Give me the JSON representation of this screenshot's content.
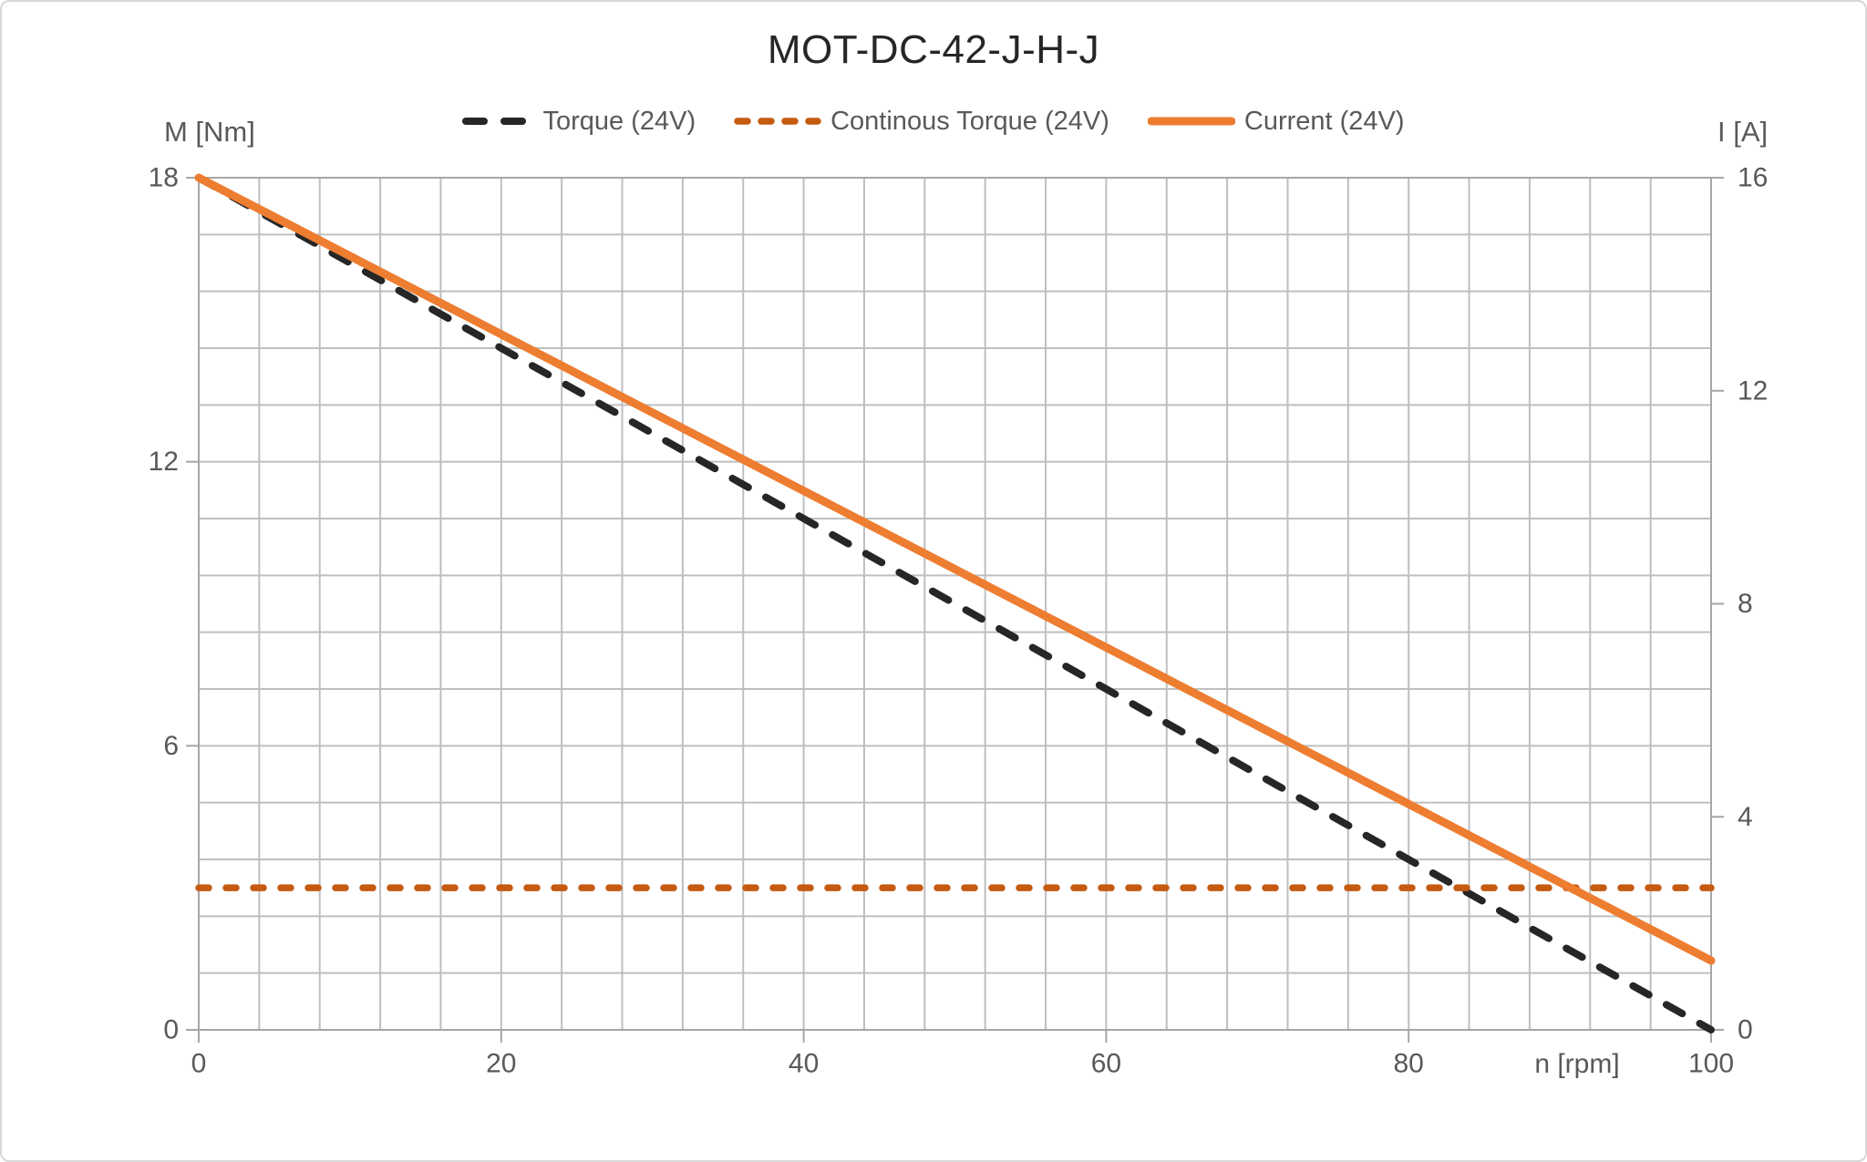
{
  "title": "MOT-DC-42-J-H-J",
  "chart_data": {
    "type": "line",
    "title": "MOT-DC-42-J-H-J",
    "legend_position": "top",
    "grid": {
      "color": "#BFBFBF",
      "axis_color": "#A6A6A6",
      "grid_on": true
    },
    "text_color": "#595959",
    "title_color": "#262626",
    "x_axis": {
      "label": "n [rpm]",
      "min": 0,
      "max": 100,
      "grid_step": 4,
      "ticks": [
        0,
        20,
        40,
        60,
        80,
        100
      ]
    },
    "y_left": {
      "label": "M [Nm]",
      "min": 0,
      "max": 18,
      "grid_step": 1.2,
      "ticks": [
        18,
        12,
        6,
        0
      ]
    },
    "y_right": {
      "label": "I [A]",
      "min": 0,
      "max": 16,
      "ticks": [
        16,
        12,
        8,
        4,
        0
      ]
    },
    "series": [
      {
        "name": "Torque (24V)",
        "axis": "left",
        "color": "#262626",
        "line_style": "dashed",
        "dash": [
          20,
          22
        ],
        "width": 8,
        "points": [
          [
            0,
            18
          ],
          [
            100,
            0
          ]
        ]
      },
      {
        "name": "Continous Torque (24V)",
        "axis": "left",
        "color": "#C55A11",
        "line_style": "dashed",
        "dash": [
          11,
          19
        ],
        "width": 7.5,
        "points": [
          [
            0,
            3
          ],
          [
            100,
            3
          ]
        ]
      },
      {
        "name": "Current (24V)",
        "axis": "right",
        "color": "#ED7D31",
        "line_style": "solid",
        "dash": null,
        "width": 9,
        "points": [
          [
            0,
            16
          ],
          [
            100,
            1.3
          ]
        ]
      }
    ]
  }
}
